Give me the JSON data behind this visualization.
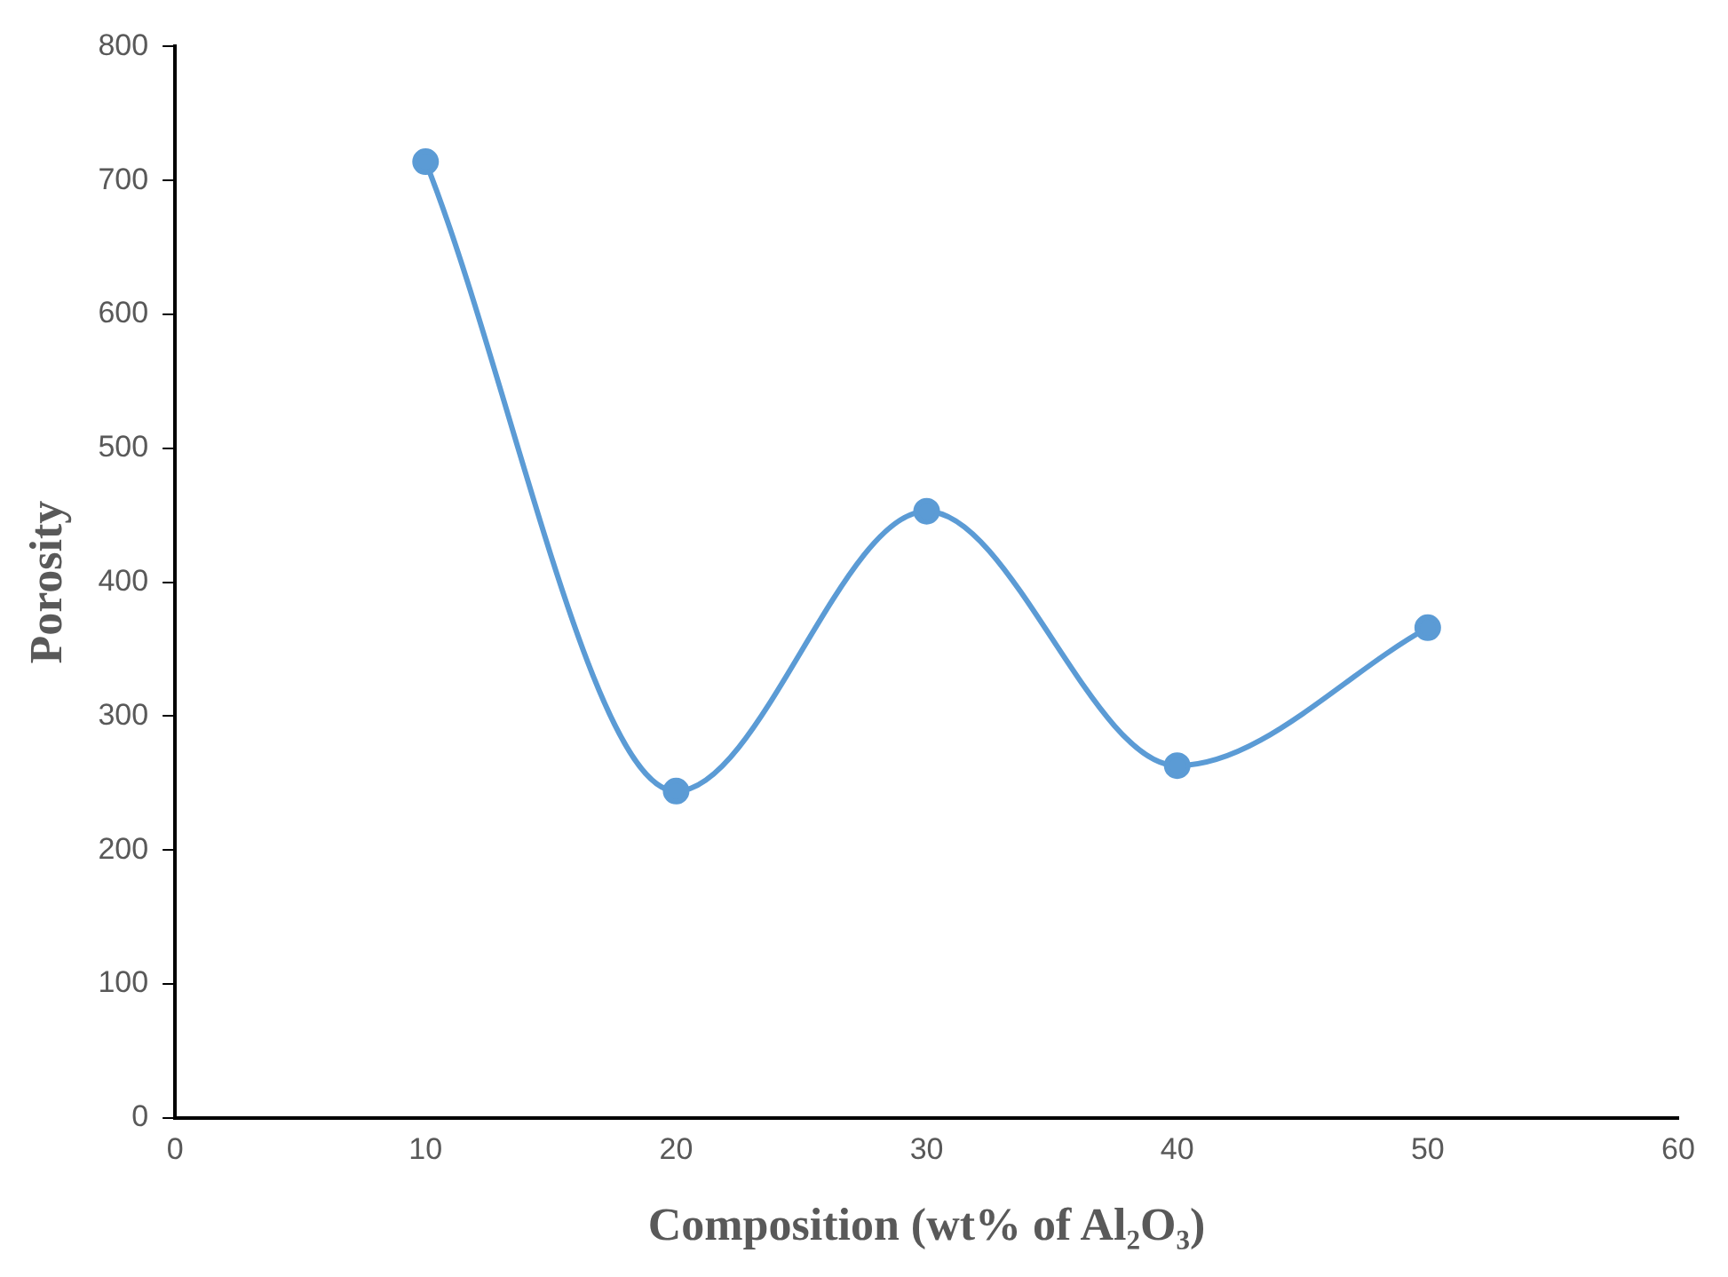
{
  "chart_data": {
    "type": "line",
    "xlabel": "Composition (wt% of Al₂O₃)",
    "ylabel": "Porosity",
    "x": [
      10,
      20,
      30,
      40,
      50
    ],
    "series": [
      {
        "color": "#5b9bd5",
        "values": [
          714,
          244,
          453,
          263,
          366
        ]
      }
    ],
    "xlim": [
      0,
      60
    ],
    "xticks": [
      0,
      10,
      20,
      30,
      40,
      50,
      60
    ],
    "ylim": [
      0,
      800
    ],
    "yticks": [
      0,
      100,
      200,
      300,
      400,
      500,
      600,
      700,
      800
    ],
    "grid": false,
    "legend": false,
    "marker": "circle",
    "line_style": "solid"
  }
}
